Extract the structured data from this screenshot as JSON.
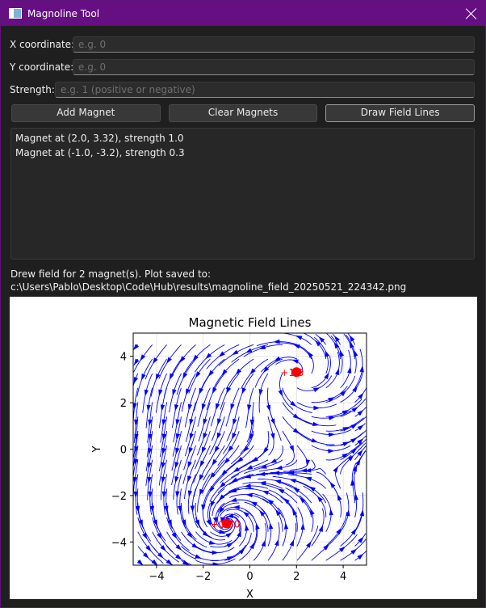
{
  "window": {
    "title": "Magnoline Tool"
  },
  "form": {
    "x_label": "X coordinate:",
    "x_placeholder": "e.g. 0",
    "y_label": "Y coordinate:",
    "y_placeholder": "e.g. 0",
    "strength_label": "Strength:",
    "strength_placeholder": "e.g. 1 (positive or negative)"
  },
  "buttons": {
    "add": "Add Magnet",
    "clear": "Clear Magnets",
    "draw": "Draw Field Lines"
  },
  "magnets_list": [
    "Magnet at (2.0, 3.32), strength 1.0",
    "Magnet at (-1.0, -3.2), strength 0.3"
  ],
  "status": {
    "line1": "Drew field for 2 magnet(s). Plot saved to:",
    "line2": "c:\\Users\\Pablo\\Desktop\\Code\\Hub\\results\\magnoline_field_20250521_224342.png"
  },
  "chart_data": {
    "type": "scatter",
    "title": "Magnetic Field Lines",
    "xlabel": "X",
    "ylabel": "Y",
    "xlim": [
      -5,
      5
    ],
    "ylim": [
      -5,
      5
    ],
    "xticks": [
      -4,
      -2,
      0,
      2,
      4
    ],
    "yticks": [
      -4,
      -2,
      0,
      2,
      4
    ],
    "grid": true,
    "marker_color": "#ff0000",
    "line_color": "#0000ff",
    "points": [
      {
        "x": 2.0,
        "y": 3.32,
        "label": "+1.0"
      },
      {
        "x": -1.0,
        "y": -3.2,
        "label": "+0.30"
      }
    ]
  }
}
